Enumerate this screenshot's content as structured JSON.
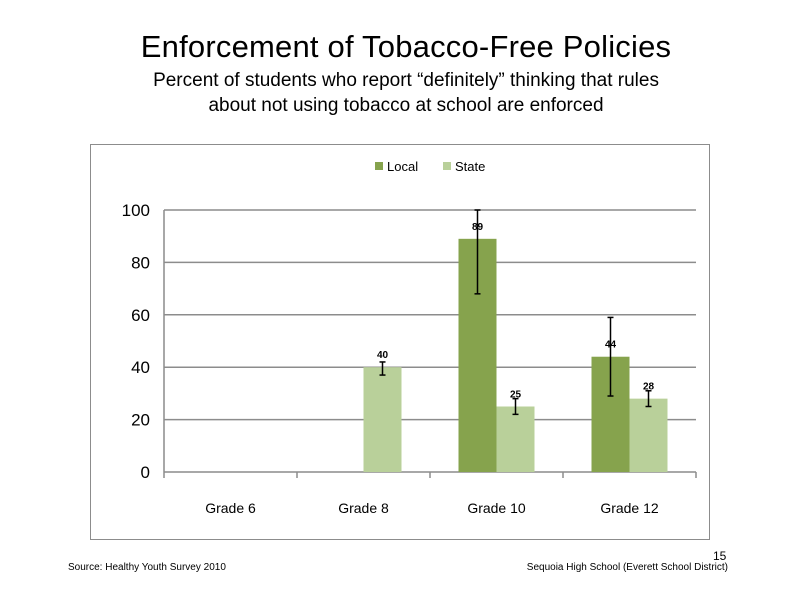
{
  "slide": {
    "title": "Enforcement  of  Tobacco-Free  Policies",
    "subtitle_line1": "Percent of students  who report “definitely”  thinking  that rules",
    "subtitle_line2": "about not using tobacco at school are enforced",
    "source": "Source: Healthy  Youth Survey 2010",
    "school": "Sequoia High School (Everett School District)",
    "page_number": "15"
  },
  "chart_data": {
    "type": "bar",
    "categories": [
      "Grade 6",
      "Grade 8",
      "Grade 10",
      "Grade 12"
    ],
    "series": [
      {
        "name": "Local",
        "color": "#86a34d",
        "values": [
          null,
          null,
          89,
          44
        ],
        "labels": [
          "",
          "",
          "89",
          "44"
        ],
        "error_low": [
          null,
          null,
          68,
          29
        ],
        "error_high": [
          null,
          null,
          100,
          59
        ]
      },
      {
        "name": "State",
        "color": "#b9d09a",
        "values": [
          null,
          40,
          25,
          28
        ],
        "labels": [
          "",
          "40",
          "25",
          "28"
        ],
        "error_low": [
          null,
          37,
          22,
          25
        ],
        "error_high": [
          null,
          42,
          28,
          31
        ]
      }
    ],
    "yticks": [
      "0",
      "20",
      "40",
      "60",
      "80",
      "100"
    ],
    "ylim": [
      0,
      100
    ],
    "grid": true,
    "legend_position": "top-center"
  }
}
